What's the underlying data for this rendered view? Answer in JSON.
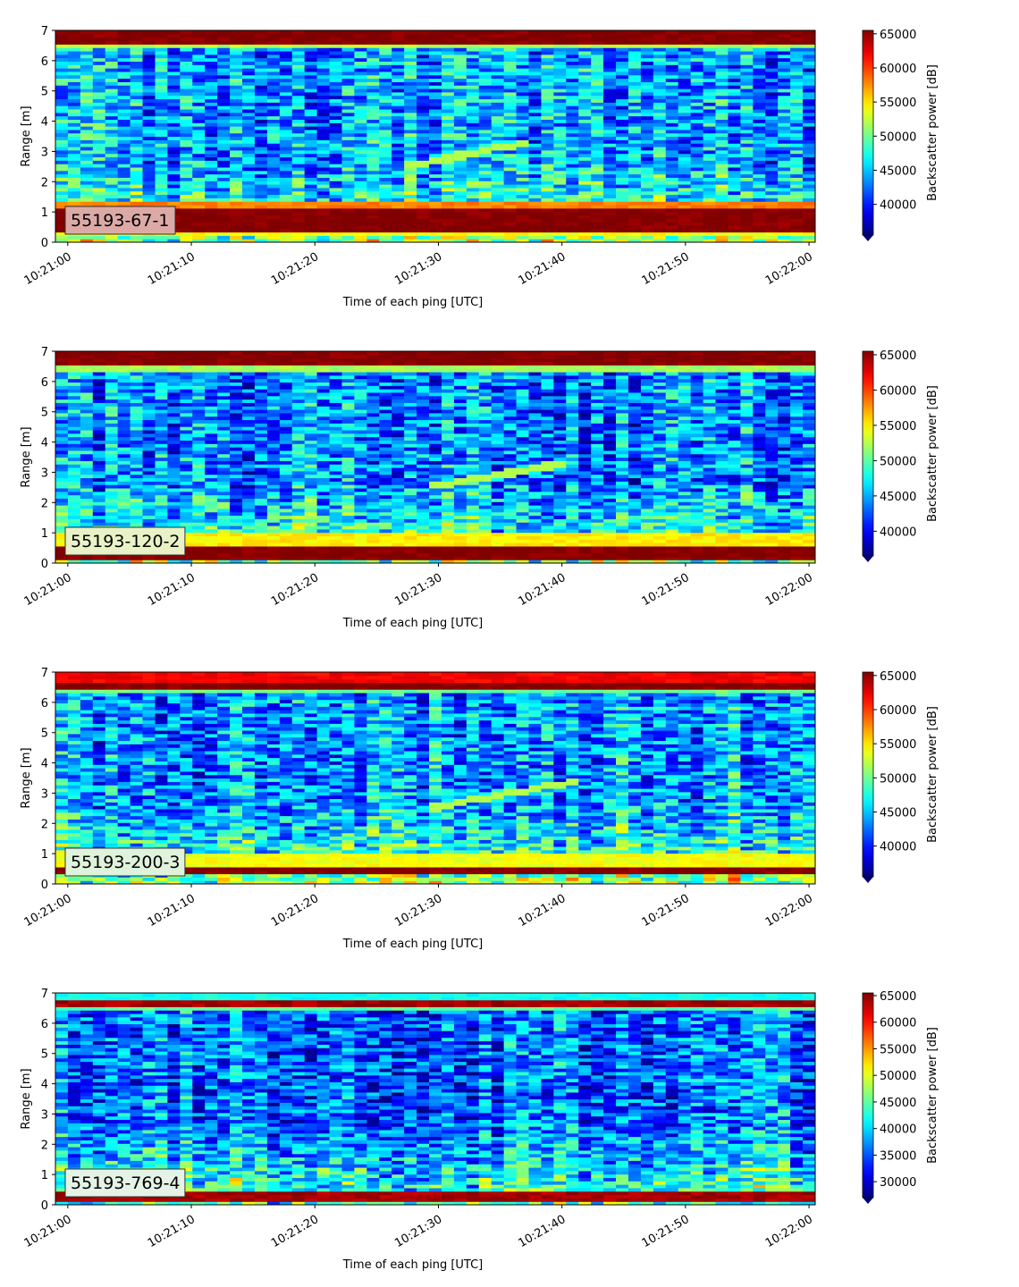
{
  "figure": {
    "colormap": "jet",
    "xlabel": "Time of each ping [UTC]",
    "ylabel": "Range [m]",
    "colorbar_label": "Backscatter power [dB]",
    "x_ticks": [
      "10:21:00",
      "10:21:10",
      "10:21:20",
      "10:21:30",
      "10:21:40",
      "10:21:50",
      "10:22:00"
    ]
  },
  "chart_data": [
    {
      "type": "heatmap",
      "label": "55193-67-1",
      "label_box_color": "#dcaaa6",
      "xlim_seconds": [
        -1,
        60.5
      ],
      "ylim": [
        0,
        7
      ],
      "y_ticks": [
        0,
        1,
        2,
        3,
        4,
        5,
        6,
        7
      ],
      "colorbar_range": [
        35500,
        65500
      ],
      "colorbar_ticks": [
        40000,
        45000,
        50000,
        55000,
        60000,
        65000
      ],
      "bands": [
        {
          "range": [
            6.55,
            7.0
          ],
          "level": 65500
        },
        {
          "range": [
            6.4,
            6.55
          ],
          "level": 52000
        },
        {
          "range": [
            0.3,
            1.1
          ],
          "level": 65500
        },
        {
          "range": [
            1.1,
            1.4
          ],
          "level": 58000
        },
        {
          "range": [
            0.2,
            0.3
          ],
          "level": 54000
        }
      ],
      "background_level": 44000,
      "trace": {
        "start": [
          27,
          2.5
        ],
        "end": [
          37,
          3.3
        ]
      }
    },
    {
      "type": "heatmap",
      "label": "55193-120-2",
      "label_box_color": "#e9f2c6",
      "xlim_seconds": [
        -1,
        60.5
      ],
      "ylim": [
        0,
        7
      ],
      "y_ticks": [
        0,
        1,
        2,
        3,
        4,
        5,
        6,
        7
      ],
      "colorbar_range": [
        36500,
        65500
      ],
      "colorbar_ticks": [
        40000,
        45000,
        50000,
        55000,
        60000,
        65000
      ],
      "bands": [
        {
          "range": [
            6.5,
            7.0
          ],
          "level": 65500
        },
        {
          "range": [
            6.3,
            6.5
          ],
          "level": 52000
        },
        {
          "range": [
            0.15,
            0.55
          ],
          "level": 65500
        },
        {
          "range": [
            0.55,
            1.0
          ],
          "level": 55000
        }
      ],
      "background_level": 44000,
      "trace": {
        "start": [
          29,
          2.5
        ],
        "end": [
          40,
          3.3
        ]
      }
    },
    {
      "type": "heatmap",
      "label": "55193-200-3",
      "label_box_color": "#dff3dc",
      "xlim_seconds": [
        -1,
        60.5
      ],
      "ylim": [
        0,
        7
      ],
      "y_ticks": [
        0,
        1,
        2,
        3,
        4,
        5,
        6,
        7
      ],
      "colorbar_range": [
        35500,
        65500
      ],
      "colorbar_ticks": [
        40000,
        45000,
        50000,
        55000,
        60000,
        65000
      ],
      "bands": [
        {
          "range": [
            6.65,
            7.0
          ],
          "level": 62000
        },
        {
          "range": [
            6.45,
            6.65
          ],
          "level": 65500
        },
        {
          "range": [
            6.3,
            6.45
          ],
          "level": 50000
        },
        {
          "range": [
            0.3,
            0.55
          ],
          "level": 65500
        },
        {
          "range": [
            0.55,
            1.0
          ],
          "level": 54000
        }
      ],
      "background_level": 44000,
      "trace": {
        "start": [
          29,
          2.5
        ],
        "end": [
          41,
          3.4
        ]
      }
    },
    {
      "type": "heatmap",
      "label": "55193-769-4",
      "label_box_color": "#e5f3e6",
      "xlim_seconds": [
        -1,
        60.5
      ],
      "ylim": [
        0,
        7
      ],
      "y_ticks": [
        0,
        1,
        2,
        3,
        4,
        5,
        6,
        7
      ],
      "colorbar_range": [
        27000,
        65500
      ],
      "colorbar_ticks": [
        30000,
        35000,
        40000,
        45000,
        50000,
        55000,
        60000,
        65000
      ],
      "bands": [
        {
          "range": [
            6.8,
            7.0
          ],
          "level": 42000
        },
        {
          "range": [
            6.5,
            6.8
          ],
          "level": 64000
        },
        {
          "range": [
            6.38,
            6.5
          ],
          "level": 45000
        },
        {
          "range": [
            0.15,
            0.4
          ],
          "level": 64000
        }
      ],
      "background_level": 36000,
      "trace": null
    }
  ]
}
